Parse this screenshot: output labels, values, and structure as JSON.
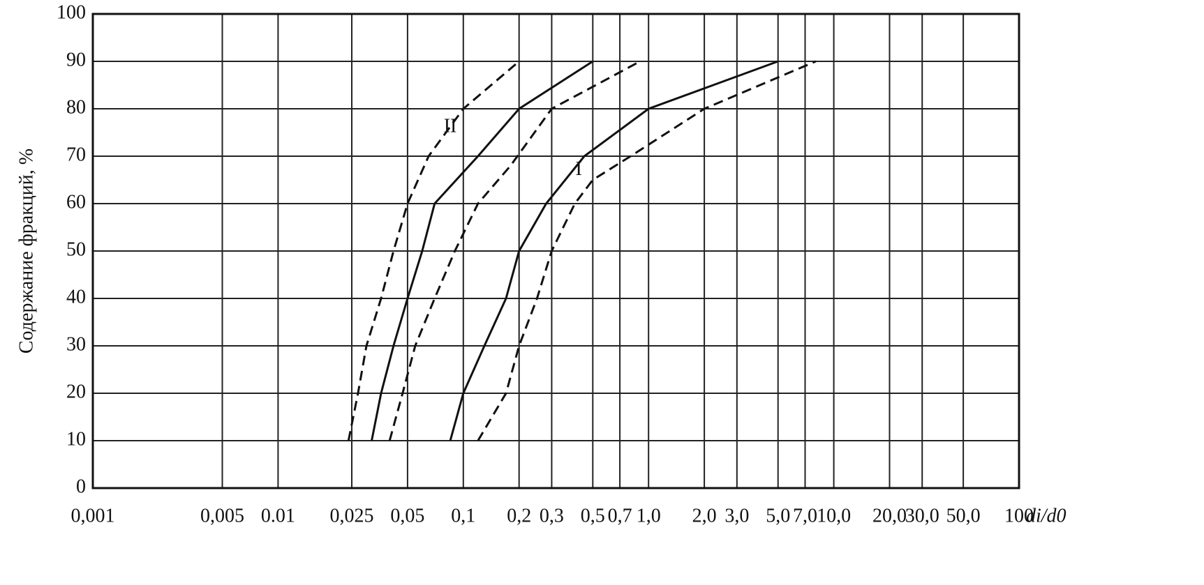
{
  "chart_data": {
    "type": "line",
    "y_label": "Содержание фракций, %",
    "x_label": "di/d0",
    "log_x": true,
    "grid": true,
    "xlim": [
      0.001,
      100
    ],
    "ylim": [
      0,
      100
    ],
    "xticks": [
      {
        "value": 0.001,
        "label": "0,001"
      },
      {
        "value": 0.005,
        "label": "0,005"
      },
      0.01,
      {
        "value": 0.025,
        "label": "0,025"
      },
      {
        "value": 0.05,
        "label": "0,05"
      },
      {
        "value": 0.1,
        "label": "0,1"
      },
      {
        "value": 0.2,
        "label": "0,2"
      },
      {
        "value": 0.3,
        "label": "0,3"
      },
      {
        "value": 0.5,
        "label": "0,5"
      },
      {
        "value": 0.7,
        "label": "0,7"
      },
      {
        "value": 1,
        "label": "1,0"
      },
      {
        "value": 2,
        "label": "2,0"
      },
      {
        "value": 3,
        "label": "3,0"
      },
      {
        "value": 5,
        "label": "5,0"
      },
      {
        "value": 7,
        "label": "7,0"
      },
      {
        "value": 10,
        "label": "10,0"
      },
      {
        "value": 20,
        "label": "20,0"
      },
      {
        "value": 30,
        "label": "30,0"
      },
      {
        "value": 50,
        "label": "50,0"
      },
      100
    ],
    "yticks": [
      0,
      10,
      20,
      30,
      40,
      50,
      60,
      70,
      80,
      90,
      100
    ],
    "series": [
      {
        "color": "#111111",
        "dashed": true,
        "x": [
          0.024,
          0.027,
          0.03,
          0.036,
          0.042,
          0.05,
          0.065,
          0.1,
          0.2
        ],
        "values": [
          10,
          20,
          30,
          40,
          50,
          60,
          70,
          80,
          90
        ]
      },
      {
        "color": "#111111",
        "dashed": false,
        "x": [
          0.032,
          0.036,
          0.042,
          0.05,
          0.06,
          0.07,
          0.12,
          0.2,
          0.5
        ],
        "values": [
          10,
          20,
          30,
          40,
          50,
          60,
          70,
          80,
          90
        ]
      },
      {
        "color": "#111111",
        "dashed": true,
        "x": [
          0.04,
          0.047,
          0.055,
          0.07,
          0.09,
          0.12,
          0.18,
          0.3,
          0.9
        ],
        "values": [
          10,
          20,
          30,
          40,
          50,
          60,
          68,
          80,
          90
        ]
      },
      {
        "color": "#111111",
        "dashed": false,
        "x": [
          0.085,
          0.1,
          0.13,
          0.17,
          0.2,
          0.28,
          0.45,
          1,
          5
        ],
        "values": [
          10,
          20,
          30,
          40,
          50,
          60,
          70,
          80,
          90
        ]
      },
      {
        "color": "#111111",
        "dashed": true,
        "x": [
          0.12,
          0.17,
          0.2,
          0.25,
          0.3,
          0.4,
          0.5,
          0.8,
          2,
          8
        ],
        "values": [
          10,
          20,
          30,
          40,
          50,
          60,
          65,
          70,
          80,
          90
        ]
      }
    ],
    "annotations": [
      {
        "text": "II",
        "x": 0.085,
        "y": 76
      },
      {
        "text": "I",
        "x": 0.42,
        "y": 67
      }
    ]
  }
}
